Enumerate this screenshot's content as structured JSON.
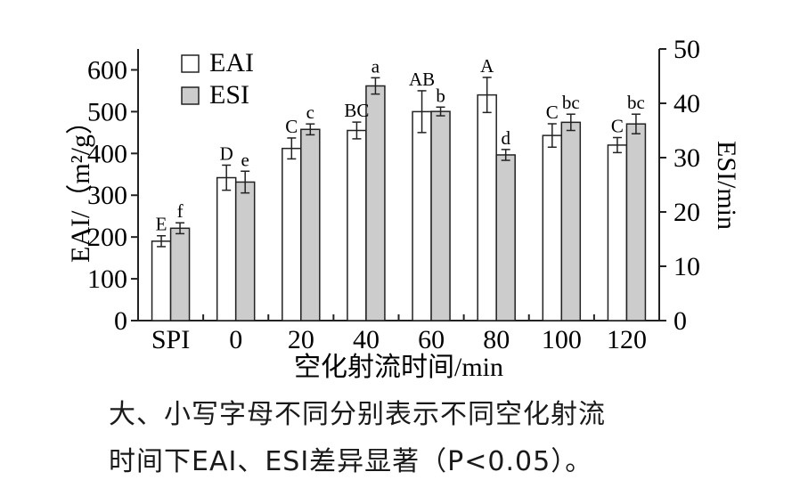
{
  "chart_data": {
    "type": "bar",
    "categories": [
      "SPI",
      "0",
      "20",
      "40",
      "60",
      "80",
      "100",
      "120"
    ],
    "series": [
      {
        "name": "EAI",
        "axis": "left",
        "fill": "#ffffff",
        "values": [
          190,
          342,
          412,
          455,
          500,
          540,
          443,
          420
        ],
        "errors": [
          13,
          30,
          25,
          20,
          50,
          42,
          28,
          18
        ],
        "letters": [
          "E",
          "D",
          "C",
          "BC",
          "AB",
          "A",
          "C",
          "C"
        ]
      },
      {
        "name": "ESI",
        "axis": "right",
        "fill": "#cccccc",
        "values": [
          17,
          25.5,
          35.2,
          43.2,
          38.5,
          30.5,
          36.5,
          36.2
        ],
        "errors": [
          1.0,
          2.0,
          1.0,
          1.5,
          0.8,
          1.0,
          1.5,
          1.8
        ],
        "letters": [
          "f",
          "e",
          "c",
          "a",
          "b",
          "d",
          "bc",
          "bc"
        ]
      }
    ],
    "ylabel": "EAI/（m²/g）",
    "y2label": "ESI/min",
    "xlabel": "空化射流时间/min",
    "ylim": [
      0,
      650
    ],
    "y2lim": [
      0,
      50
    ],
    "yticks": [
      0,
      100,
      200,
      300,
      400,
      500,
      600
    ],
    "y2ticks": [
      0,
      10,
      20,
      30,
      40,
      50
    ],
    "legend_position": "top-left",
    "grid": false
  },
  "caption": {
    "line1": "大、小写字母不同分别表示不同空化射流",
    "line2": "时间下EAI、ESI差异显著（P<0.05）。"
  }
}
